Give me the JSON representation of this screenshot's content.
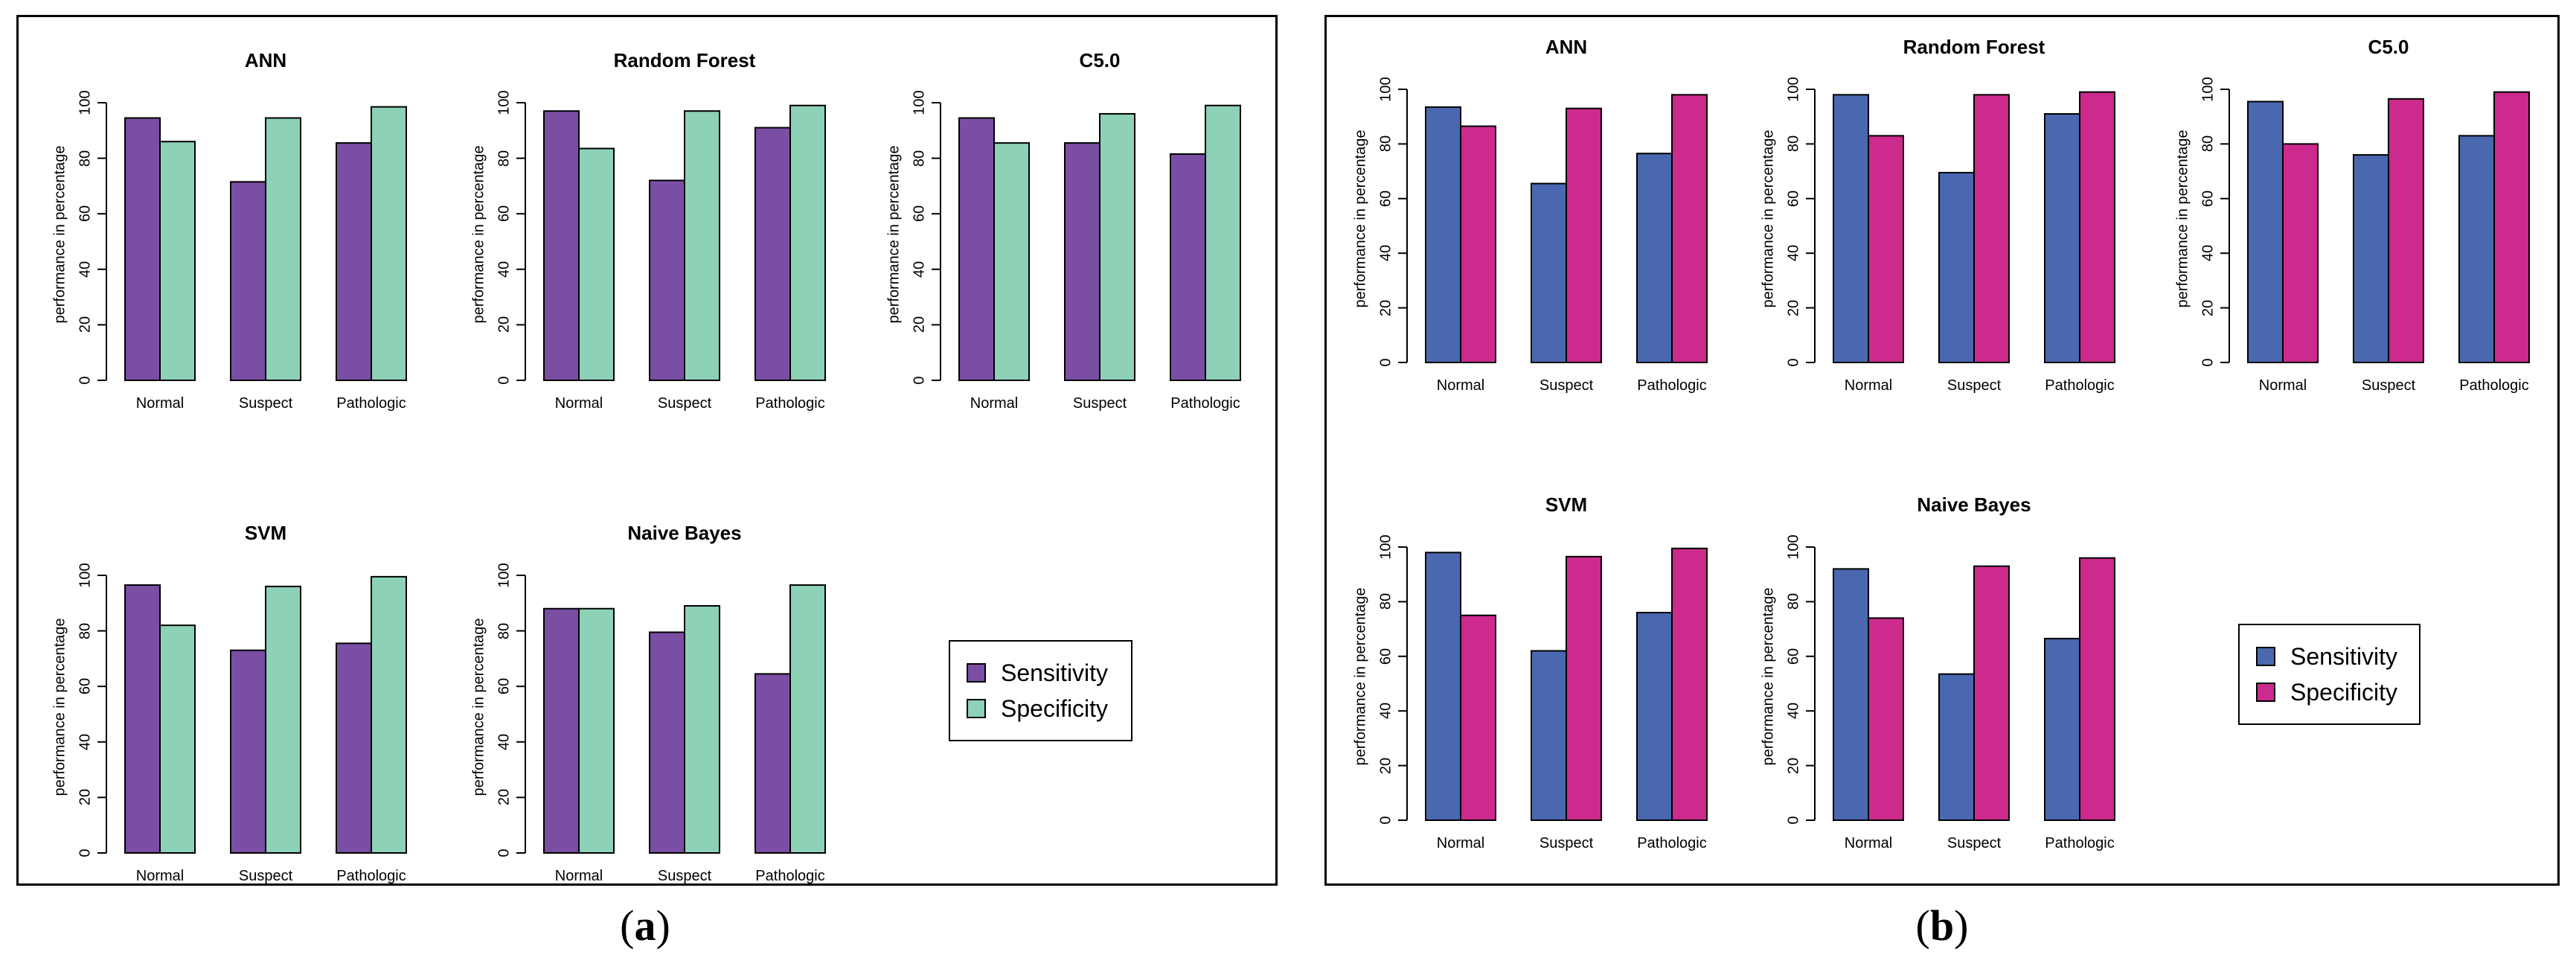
{
  "captions": {
    "a_open": "(",
    "a_letter": "a",
    "a_close": ")",
    "b_open": "(",
    "b_letter": "b",
    "b_close": ")"
  },
  "colors": {
    "a": {
      "sensitivity": "#7a4fa3",
      "specificity": "#8dd1b7"
    },
    "b": {
      "sensitivity": "#4a68b0",
      "specificity": "#cc2a8c"
    }
  },
  "legend": {
    "sensitivity": "Sensitivity",
    "specificity": "Specificity"
  },
  "chart_data": [
    {
      "panel": "a",
      "charts": [
        {
          "type": "bar",
          "title": "ANN",
          "ylabel": "performance in percentage",
          "categories": [
            "Normal",
            "Suspect",
            "Pathologic"
          ],
          "ylim": [
            0,
            100
          ],
          "yticks": [
            0,
            20,
            40,
            60,
            80,
            100
          ],
          "series": [
            {
              "name": "Sensitivity",
              "values": [
                94.5,
                71.5,
                85.5
              ]
            },
            {
              "name": "Specificity",
              "values": [
                86,
                94.5,
                98.5
              ]
            }
          ]
        },
        {
          "type": "bar",
          "title": "Random Forest",
          "ylabel": "performance in percentage",
          "categories": [
            "Normal",
            "Suspect",
            "Pathologic"
          ],
          "ylim": [
            0,
            100
          ],
          "yticks": [
            0,
            20,
            40,
            60,
            80,
            100
          ],
          "series": [
            {
              "name": "Sensitivity",
              "values": [
                97,
                72,
                91
              ]
            },
            {
              "name": "Specificity",
              "values": [
                83.5,
                97,
                99
              ]
            }
          ]
        },
        {
          "type": "bar",
          "title": "C5.0",
          "ylabel": "performance in percentage",
          "categories": [
            "Normal",
            "Suspect",
            "Pathologic"
          ],
          "ylim": [
            0,
            100
          ],
          "yticks": [
            0,
            20,
            40,
            60,
            80,
            100
          ],
          "series": [
            {
              "name": "Sensitivity",
              "values": [
                94.5,
                85.5,
                81.5
              ]
            },
            {
              "name": "Specificity",
              "values": [
                85.5,
                96,
                99
              ]
            }
          ]
        },
        {
          "type": "bar",
          "title": "SVM",
          "ylabel": "performance in percentage",
          "categories": [
            "Normal",
            "Suspect",
            "Pathologic"
          ],
          "ylim": [
            0,
            100
          ],
          "yticks": [
            0,
            20,
            40,
            60,
            80,
            100
          ],
          "series": [
            {
              "name": "Sensitivity",
              "values": [
                96.5,
                73,
                75.5
              ]
            },
            {
              "name": "Specificity",
              "values": [
                82,
                96,
                99.5
              ]
            }
          ]
        },
        {
          "type": "bar",
          "title": "Naive Bayes",
          "ylabel": "performance in percentage",
          "categories": [
            "Normal",
            "Suspect",
            "Pathologic"
          ],
          "ylim": [
            0,
            100
          ],
          "yticks": [
            0,
            20,
            40,
            60,
            80,
            100
          ],
          "series": [
            {
              "name": "Sensitivity",
              "values": [
                88,
                79.5,
                64.5
              ]
            },
            {
              "name": "Specificity",
              "values": [
                88,
                89,
                96.5
              ]
            }
          ]
        }
      ]
    },
    {
      "panel": "b",
      "charts": [
        {
          "type": "bar",
          "title": "ANN",
          "ylabel": "performance in percentage",
          "categories": [
            "Normal",
            "Suspect",
            "Pathologic"
          ],
          "ylim": [
            0,
            100
          ],
          "yticks": [
            0,
            20,
            40,
            60,
            80,
            100
          ],
          "series": [
            {
              "name": "Sensitivity",
              "values": [
                93.5,
                65.5,
                76.5
              ]
            },
            {
              "name": "Specificity",
              "values": [
                86.5,
                93,
                98
              ]
            }
          ]
        },
        {
          "type": "bar",
          "title": "Random Forest",
          "ylabel": "performance in percentage",
          "categories": [
            "Normal",
            "Suspect",
            "Pathologic"
          ],
          "ylim": [
            0,
            100
          ],
          "yticks": [
            0,
            20,
            40,
            60,
            80,
            100
          ],
          "series": [
            {
              "name": "Sensitivity",
              "values": [
                98,
                69.5,
                91
              ]
            },
            {
              "name": "Specificity",
              "values": [
                83,
                98,
                99
              ]
            }
          ]
        },
        {
          "type": "bar",
          "title": "C5.0",
          "ylabel": "performance in percentage",
          "categories": [
            "Normal",
            "Suspect",
            "Pathologic"
          ],
          "ylim": [
            0,
            100
          ],
          "yticks": [
            0,
            20,
            40,
            60,
            80,
            100
          ],
          "series": [
            {
              "name": "Sensitivity",
              "values": [
                95.5,
                76,
                83
              ]
            },
            {
              "name": "Specificity",
              "values": [
                80,
                96.5,
                99
              ]
            }
          ]
        },
        {
          "type": "bar",
          "title": "SVM",
          "ylabel": "performance in percentage",
          "categories": [
            "Normal",
            "Suspect",
            "Pathologic"
          ],
          "ylim": [
            0,
            100
          ],
          "yticks": [
            0,
            20,
            40,
            60,
            80,
            100
          ],
          "series": [
            {
              "name": "Sensitivity",
              "values": [
                98,
                62,
                76
              ]
            },
            {
              "name": "Specificity",
              "values": [
                75,
                96.5,
                99.5
              ]
            }
          ]
        },
        {
          "type": "bar",
          "title": "Naive Bayes",
          "ylabel": "performance in percentage",
          "categories": [
            "Normal",
            "Suspect",
            "Pathologic"
          ],
          "ylim": [
            0,
            100
          ],
          "yticks": [
            0,
            20,
            40,
            60,
            80,
            100
          ],
          "series": [
            {
              "name": "Sensitivity",
              "values": [
                92,
                53.5,
                66.5
              ]
            },
            {
              "name": "Specificity",
              "values": [
                74,
                93,
                96
              ]
            }
          ]
        }
      ]
    }
  ]
}
